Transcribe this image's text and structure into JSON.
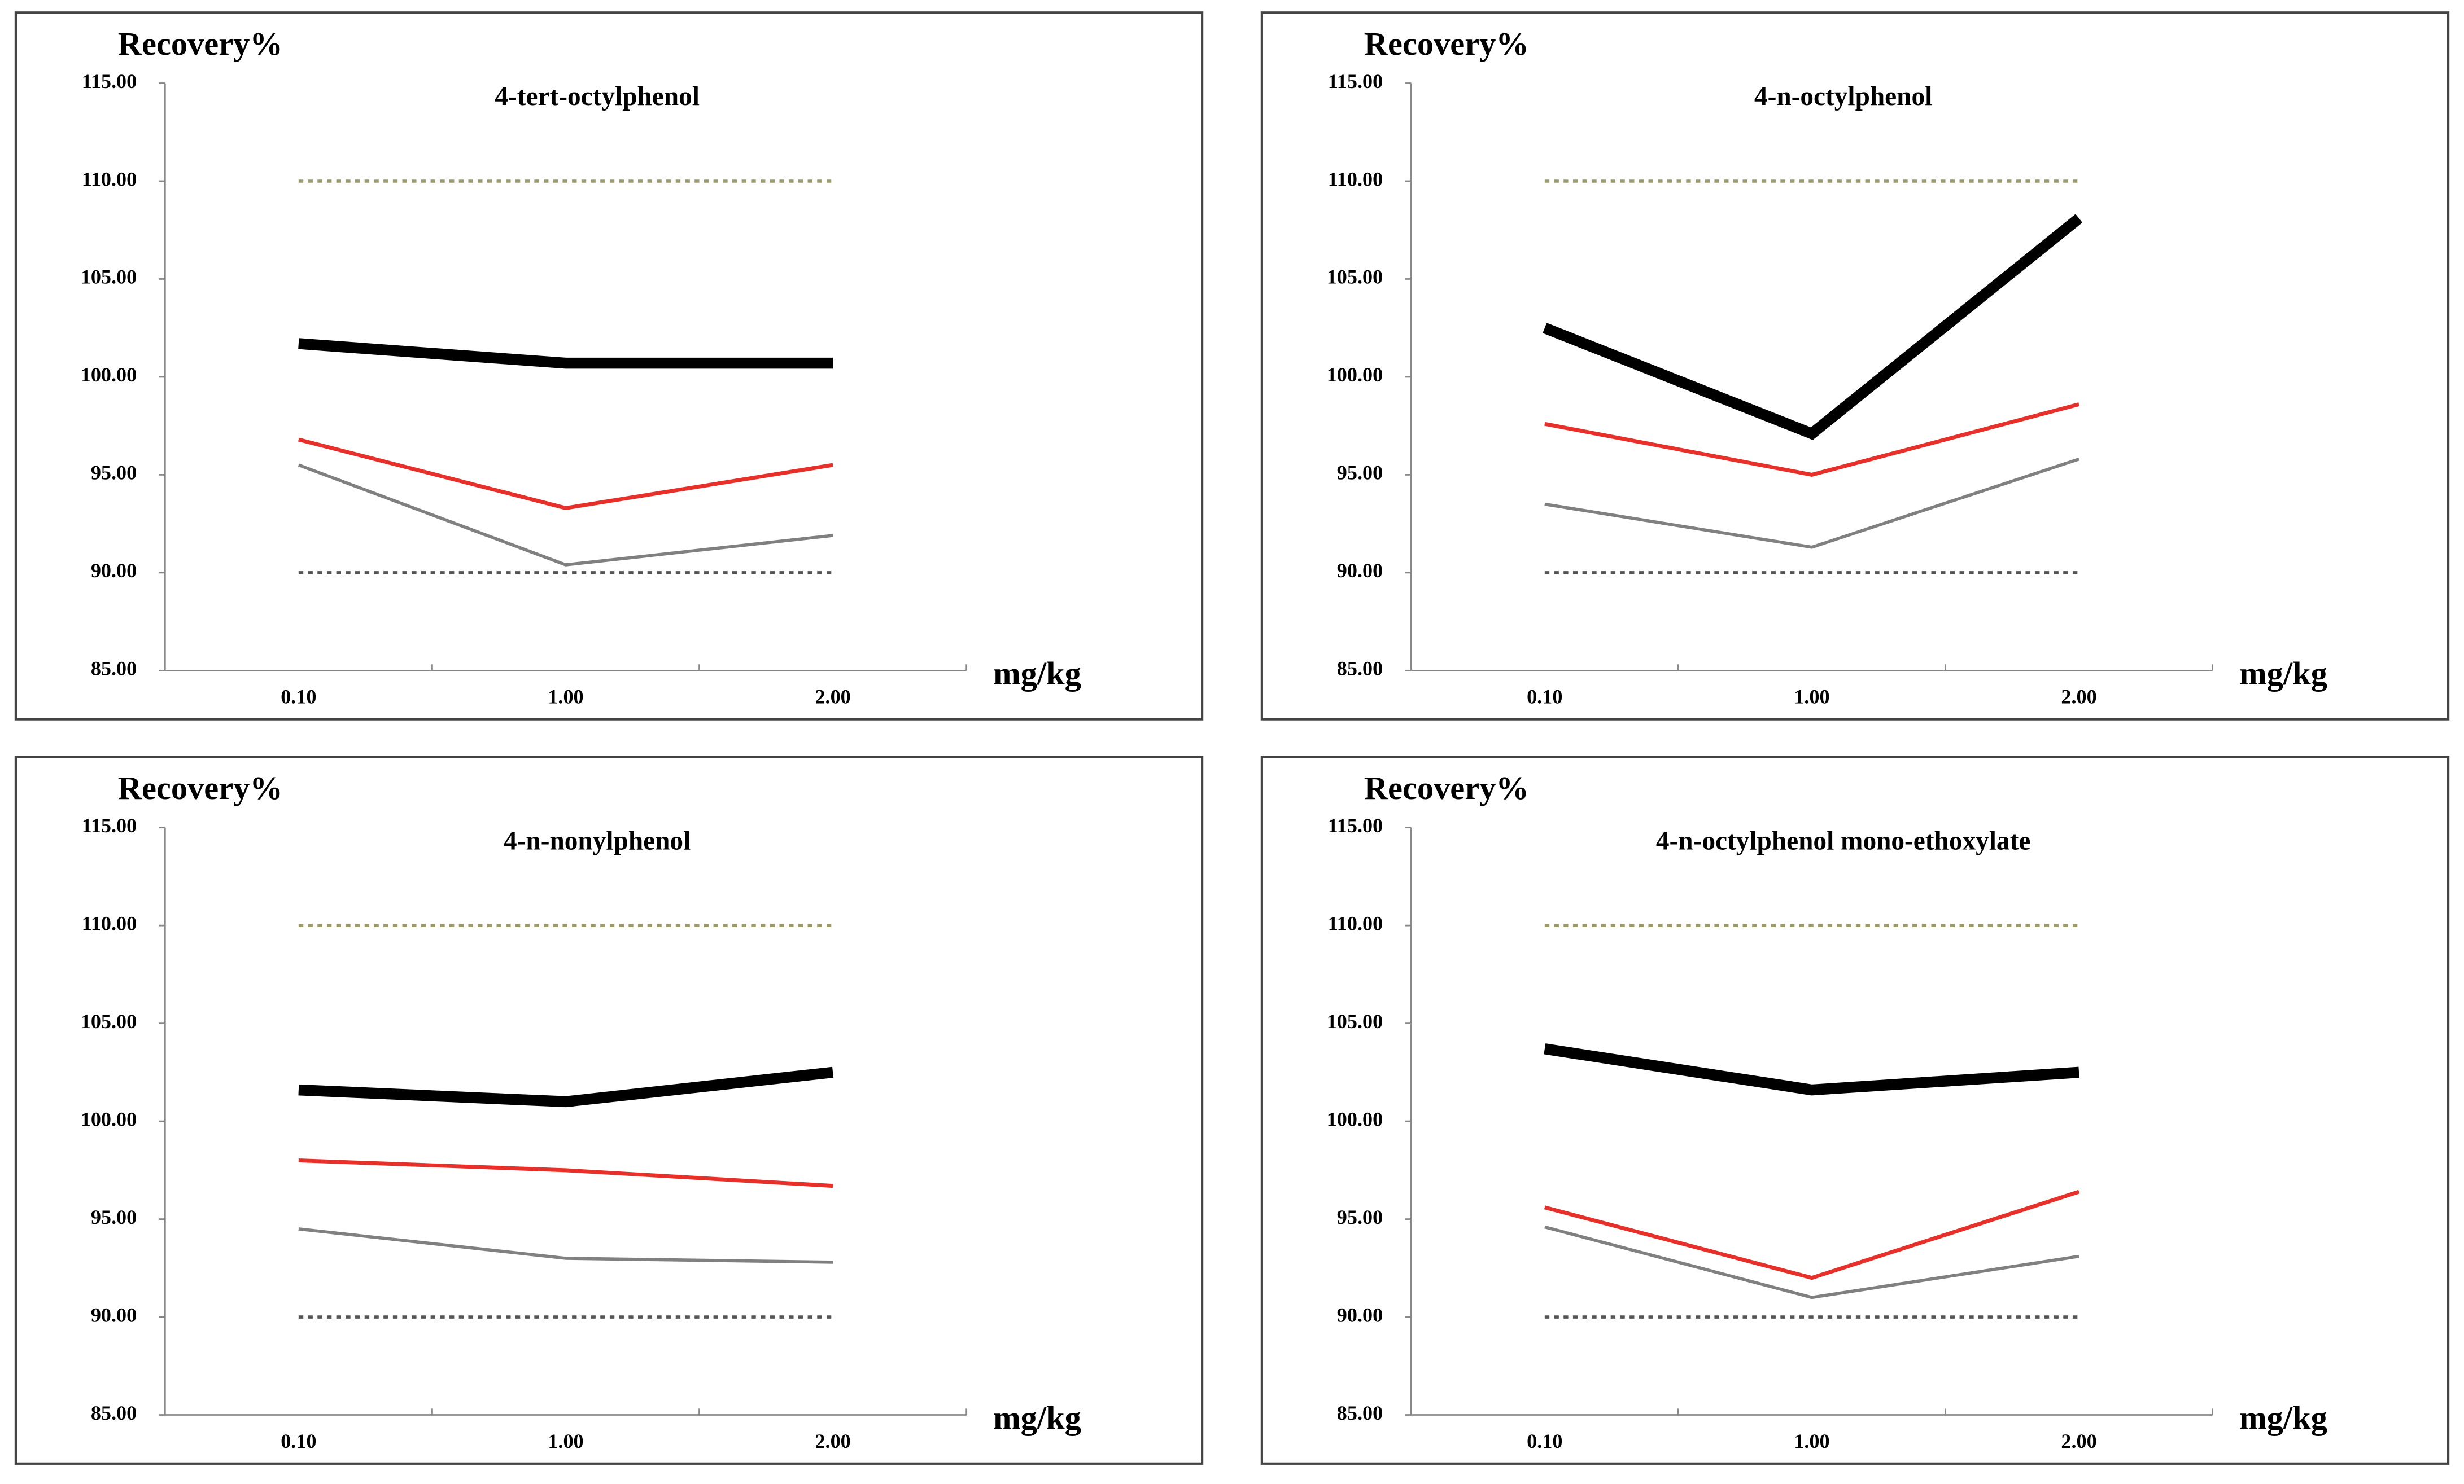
{
  "chart_data": [
    {
      "type": "line",
      "title": "4-tert-octylphenol",
      "y_label": "Recovery%",
      "x_label": "mg/kg",
      "categories": [
        "0.10",
        "1.00",
        "2.00"
      ],
      "ylim": [
        85,
        115
      ],
      "yticks": [
        {
          "value": 85,
          "label": "85.00"
        },
        {
          "value": 90,
          "label": "90.00"
        },
        {
          "value": 95,
          "label": "95.00"
        },
        {
          "value": 100,
          "label": "100.00"
        },
        {
          "value": 105,
          "label": "105.00"
        },
        {
          "value": 110,
          "label": "110.00"
        },
        {
          "value": 115,
          "label": "115.00"
        }
      ],
      "series": [
        {
          "color": "#9a9a6a",
          "dash": true,
          "width": 2,
          "values": [
            110,
            110,
            110
          ]
        },
        {
          "color": "#555555",
          "dash": true,
          "width": 2,
          "values": [
            90,
            90,
            90
          ]
        },
        {
          "color": "#000000",
          "width": 7,
          "values": [
            101.7,
            100.7,
            100.7
          ]
        },
        {
          "color": "#e8302a",
          "width": 2.5,
          "values": [
            96.8,
            93.3,
            95.5
          ]
        },
        {
          "color": "#808080",
          "width": 2,
          "values": [
            95.5,
            90.4,
            91.9
          ]
        }
      ]
    },
    {
      "type": "line",
      "title": "4-n-octylphenol",
      "y_label": "Recovery%",
      "x_label": "mg/kg",
      "categories": [
        "0.10",
        "1.00",
        "2.00"
      ],
      "ylim": [
        85,
        115
      ],
      "yticks": [
        {
          "value": 85,
          "label": "85.00"
        },
        {
          "value": 90,
          "label": "90.00"
        },
        {
          "value": 95,
          "label": "95.00"
        },
        {
          "value": 100,
          "label": "100.00"
        },
        {
          "value": 105,
          "label": "105.00"
        },
        {
          "value": 110,
          "label": "110.00"
        },
        {
          "value": 115,
          "label": "115.00"
        }
      ],
      "series": [
        {
          "color": "#9a9a6a",
          "dash": true,
          "width": 2,
          "values": [
            110,
            110,
            110
          ]
        },
        {
          "color": "#555555",
          "dash": true,
          "width": 2,
          "values": [
            90,
            90,
            90
          ]
        },
        {
          "color": "#000000",
          "width": 7,
          "values": [
            102.5,
            97.1,
            108.1
          ]
        },
        {
          "color": "#e8302a",
          "width": 2.5,
          "values": [
            97.6,
            95.0,
            98.6
          ]
        },
        {
          "color": "#808080",
          "width": 2,
          "values": [
            93.5,
            91.3,
            95.8
          ]
        }
      ]
    },
    {
      "type": "line",
      "title": "4-n-nonylphenol",
      "y_label": "Recovery%",
      "x_label": "mg/kg",
      "categories": [
        "0.10",
        "1.00",
        "2.00"
      ],
      "ylim": [
        85,
        115
      ],
      "yticks": [
        {
          "value": 85,
          "label": "85.00"
        },
        {
          "value": 90,
          "label": "90.00"
        },
        {
          "value": 95,
          "label": "95.00"
        },
        {
          "value": 100,
          "label": "100.00"
        },
        {
          "value": 105,
          "label": "105.00"
        },
        {
          "value": 110,
          "label": "110.00"
        },
        {
          "value": 115,
          "label": "115.00"
        }
      ],
      "series": [
        {
          "color": "#9a9a6a",
          "dash": true,
          "width": 2,
          "values": [
            110,
            110,
            110
          ]
        },
        {
          "color": "#555555",
          "dash": true,
          "width": 2,
          "values": [
            90,
            90,
            90
          ]
        },
        {
          "color": "#000000",
          "width": 7,
          "values": [
            101.6,
            101.0,
            102.5
          ]
        },
        {
          "color": "#e8302a",
          "width": 2.5,
          "values": [
            98.0,
            97.5,
            96.7
          ]
        },
        {
          "color": "#808080",
          "width": 2,
          "values": [
            94.5,
            93.0,
            92.8
          ]
        }
      ]
    },
    {
      "type": "line",
      "title": "4-n-octylphenol mono-ethoxylate",
      "y_label": "Recovery%",
      "x_label": "mg/kg",
      "categories": [
        "0.10",
        "1.00",
        "2.00"
      ],
      "ylim": [
        85,
        115
      ],
      "yticks": [
        {
          "value": 85,
          "label": "85.00"
        },
        {
          "value": 90,
          "label": "90.00"
        },
        {
          "value": 95,
          "label": "95.00"
        },
        {
          "value": 100,
          "label": "100.00"
        },
        {
          "value": 105,
          "label": "105.00"
        },
        {
          "value": 110,
          "label": "110.00"
        },
        {
          "value": 115,
          "label": "115.00"
        }
      ],
      "series": [
        {
          "color": "#9a9a6a",
          "dash": true,
          "width": 2,
          "values": [
            110,
            110,
            110
          ]
        },
        {
          "color": "#555555",
          "dash": true,
          "width": 2,
          "values": [
            90,
            90,
            90
          ]
        },
        {
          "color": "#000000",
          "width": 7,
          "values": [
            103.7,
            101.6,
            102.5
          ]
        },
        {
          "color": "#e8302a",
          "width": 2.5,
          "values": [
            95.6,
            92.0,
            96.4
          ]
        },
        {
          "color": "#808080",
          "width": 2,
          "values": [
            94.6,
            91.0,
            93.1
          ]
        }
      ]
    }
  ]
}
